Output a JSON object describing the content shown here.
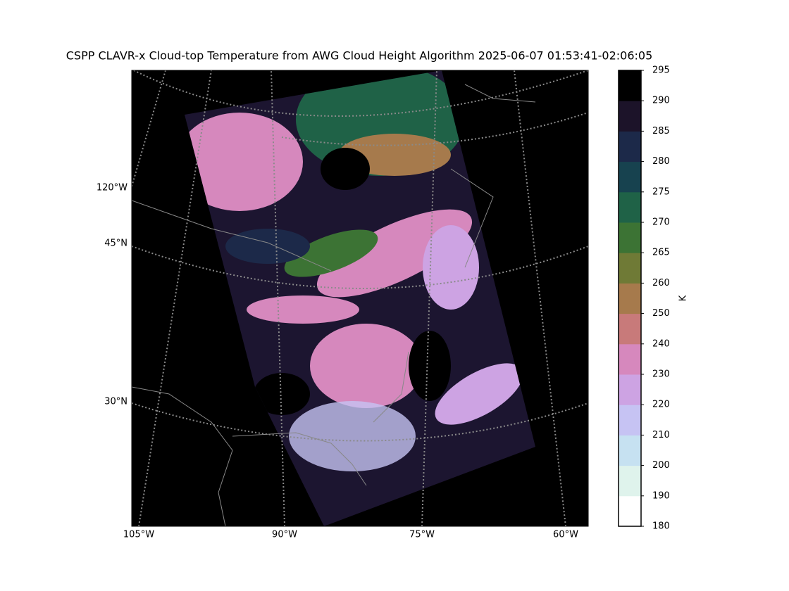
{
  "title": "CSPP CLAVR-x Cloud-top Temperature from AWG Cloud Height Algorithm 2025-06-07 01:53:41-02:06:05",
  "lon_labels": [
    "105°W",
    "90°W",
    "75°W",
    "60°W"
  ],
  "lat_labels": [
    "120°W",
    "45°N",
    "30°N"
  ],
  "colorbar": {
    "label": "K",
    "ticks": [
      180,
      190,
      200,
      210,
      220,
      230,
      240,
      250,
      260,
      265,
      270,
      275,
      280,
      285,
      290,
      295
    ],
    "colors": [
      "#ffffff",
      "#dff3ec",
      "#c6e1f1",
      "#c6c3f3",
      "#cda3e3",
      "#d688bd",
      "#c87a7a",
      "#a67a4c",
      "#6f7a36",
      "#3c7334",
      "#1f6247",
      "#17424f",
      "#1c2949",
      "#1c1329",
      "#000000"
    ]
  }
}
